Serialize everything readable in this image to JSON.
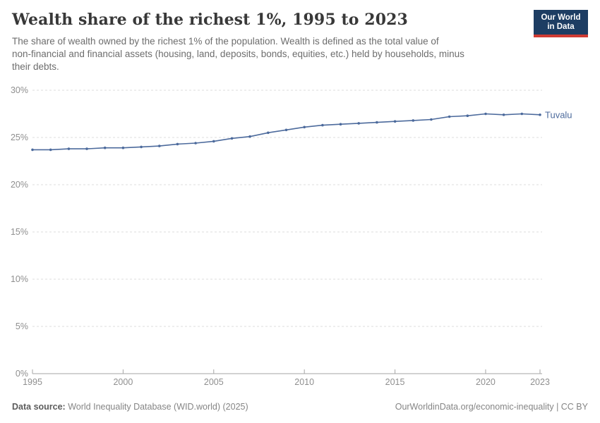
{
  "header": {
    "title": "Wealth share of the richest 1%, 1995 to 2023",
    "subtitle_lines": [
      "The share of wealth owned by the richest 1% of the population. Wealth is defined as the total value of",
      "non-financial and financial assets (housing, land, deposits, bonds, equities, etc.) held by households, minus",
      "their debts."
    ],
    "logo": {
      "line1": "Our World",
      "line2": "in Data",
      "bg_color": "#1d3d63",
      "bar_color": "#cf3b33",
      "text_color": "#ffffff"
    }
  },
  "chart_data": {
    "type": "line",
    "title": "Wealth share of the richest 1%, 1995 to 2023",
    "x": [
      1995,
      1996,
      1997,
      1998,
      1999,
      2000,
      2001,
      2002,
      2003,
      2004,
      2005,
      2006,
      2007,
      2008,
      2009,
      2010,
      2011,
      2012,
      2013,
      2014,
      2015,
      2016,
      2017,
      2018,
      2019,
      2020,
      2021,
      2022,
      2023
    ],
    "series": [
      {
        "name": "Tuvalu",
        "color": "#4c6a9c",
        "values": [
          23.7,
          23.7,
          23.8,
          23.8,
          23.9,
          23.9,
          24.0,
          24.1,
          24.3,
          24.4,
          24.6,
          24.9,
          25.1,
          25.5,
          25.8,
          26.1,
          26.3,
          26.4,
          26.5,
          26.6,
          26.7,
          26.8,
          26.9,
          27.2,
          27.3,
          27.5,
          27.4,
          27.5,
          27.4
        ]
      }
    ],
    "xlabel": "",
    "ylabel": "",
    "ylim": [
      0,
      30
    ],
    "yticks": [
      {
        "v": 0,
        "label": "0%"
      },
      {
        "v": 5,
        "label": "5%"
      },
      {
        "v": 10,
        "label": "10%"
      },
      {
        "v": 15,
        "label": "15%"
      },
      {
        "v": 20,
        "label": "20%"
      },
      {
        "v": 25,
        "label": "25%"
      },
      {
        "v": 30,
        "label": "30%"
      }
    ],
    "xticks": [
      {
        "v": 1995,
        "label": "1995"
      },
      {
        "v": 2000,
        "label": "2000"
      },
      {
        "v": 2005,
        "label": "2005"
      },
      {
        "v": 2010,
        "label": "2010"
      },
      {
        "v": 2015,
        "label": "2015"
      },
      {
        "v": 2020,
        "label": "2020"
      },
      {
        "v": 2023,
        "label": "2023"
      }
    ],
    "grid": "horizontal-dashed",
    "legend_position": "end-of-line",
    "colors": {
      "grid": "#dcdcdc",
      "axis": "#a5a5a5",
      "tick_label": "#8f8f8f"
    }
  },
  "footer": {
    "source_label": "Data source:",
    "source_value": " World Inequality Database (WID.world) (2025)",
    "link": "OurWorldinData.org/economic-inequality | CC BY"
  }
}
